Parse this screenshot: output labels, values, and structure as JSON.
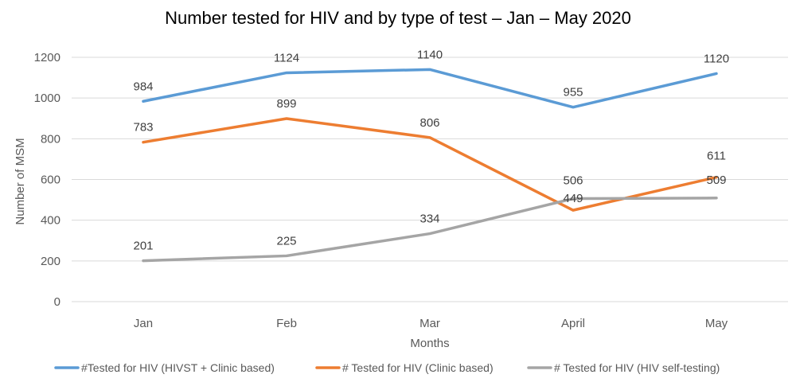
{
  "chart_data": {
    "type": "line",
    "title": "Number tested for HIV and by type of test – Jan – May 2020",
    "xlabel": "Months",
    "ylabel": "Number of MSM",
    "categories": [
      "Jan",
      "Feb",
      "Mar",
      "April",
      "May"
    ],
    "ylim": [
      0,
      1200
    ],
    "yticks": [
      0,
      200,
      400,
      600,
      800,
      1000,
      1200
    ],
    "grid": true,
    "legend_position": "bottom",
    "series": [
      {
        "name": "#Tested for HIV (HIVST + Clinic based)",
        "color": "#5b9bd5",
        "values": [
          984,
          1124,
          1140,
          955,
          1120
        ]
      },
      {
        "name": "# Tested for HIV (Clinic based)",
        "color": "#ed7d31",
        "values": [
          783,
          899,
          806,
          449,
          611
        ]
      },
      {
        "name": "# Tested for HIV (HIV self-testing)",
        "color": "#a5a5a5",
        "values": [
          201,
          225,
          334,
          506,
          509
        ]
      }
    ]
  }
}
